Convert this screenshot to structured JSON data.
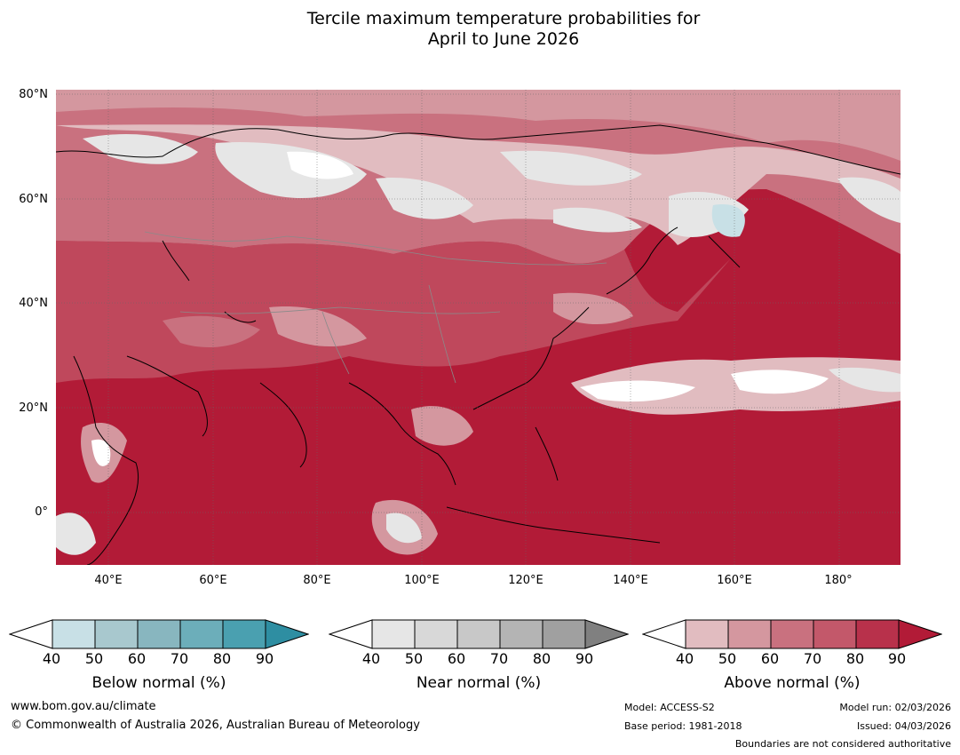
{
  "title": {
    "line1": "Tercile maximum temperature probabilities for",
    "line2": "April to June 2026"
  },
  "map": {
    "lat_labels": [
      "80°N",
      "60°N",
      "40°N",
      "20°N",
      "0°"
    ],
    "lon_labels": [
      "40°E",
      "60°E",
      "80°E",
      "100°E",
      "120°E",
      "140°E",
      "160°E",
      "180°"
    ],
    "colors": {
      "above_90": "#b21b37",
      "above_80": "#b8314b",
      "above_70": "#c3586a",
      "above_60": "#c9717f",
      "above_50": "#d4979f",
      "above_40": "#e1bcc0",
      "near_40": "#e6e6e6",
      "blue_40": "#c8e0e6"
    }
  },
  "colorbars": [
    {
      "name": "below",
      "title": "Below normal (%)",
      "ticks": [
        "40",
        "50",
        "60",
        "70",
        "80",
        "90"
      ],
      "colors": [
        "#c8e0e6",
        "#a8c8ce",
        "#88b6bf",
        "#6caeba",
        "#4aa0b0",
        "#2e8ea2"
      ]
    },
    {
      "name": "near",
      "title": "Near normal (%)",
      "ticks": [
        "40",
        "50",
        "60",
        "70",
        "80",
        "90"
      ],
      "colors": [
        "#e6e6e6",
        "#d8d8d8",
        "#c8c8c8",
        "#b4b4b4",
        "#a0a0a0",
        "#808080"
      ]
    },
    {
      "name": "above",
      "title": "Above normal (%)",
      "ticks": [
        "40",
        "50",
        "60",
        "70",
        "80",
        "90"
      ],
      "colors": [
        "#e1bcc0",
        "#d4979f",
        "#c9717f",
        "#c3586a",
        "#b8314b",
        "#b21b37"
      ]
    }
  ],
  "footer": {
    "website": "www.bom.gov.au/climate",
    "copyright": "© Commonwealth of Australia 2026, Australian Bureau of Meteorology",
    "model": "Model: ACCESS-S2",
    "base_period": "Base period: 1981-2018",
    "model_run": "Model run: 02/03/2026",
    "issued": "Issued: 04/03/2026",
    "boundaries": "Boundaries are not considered authoritative"
  }
}
